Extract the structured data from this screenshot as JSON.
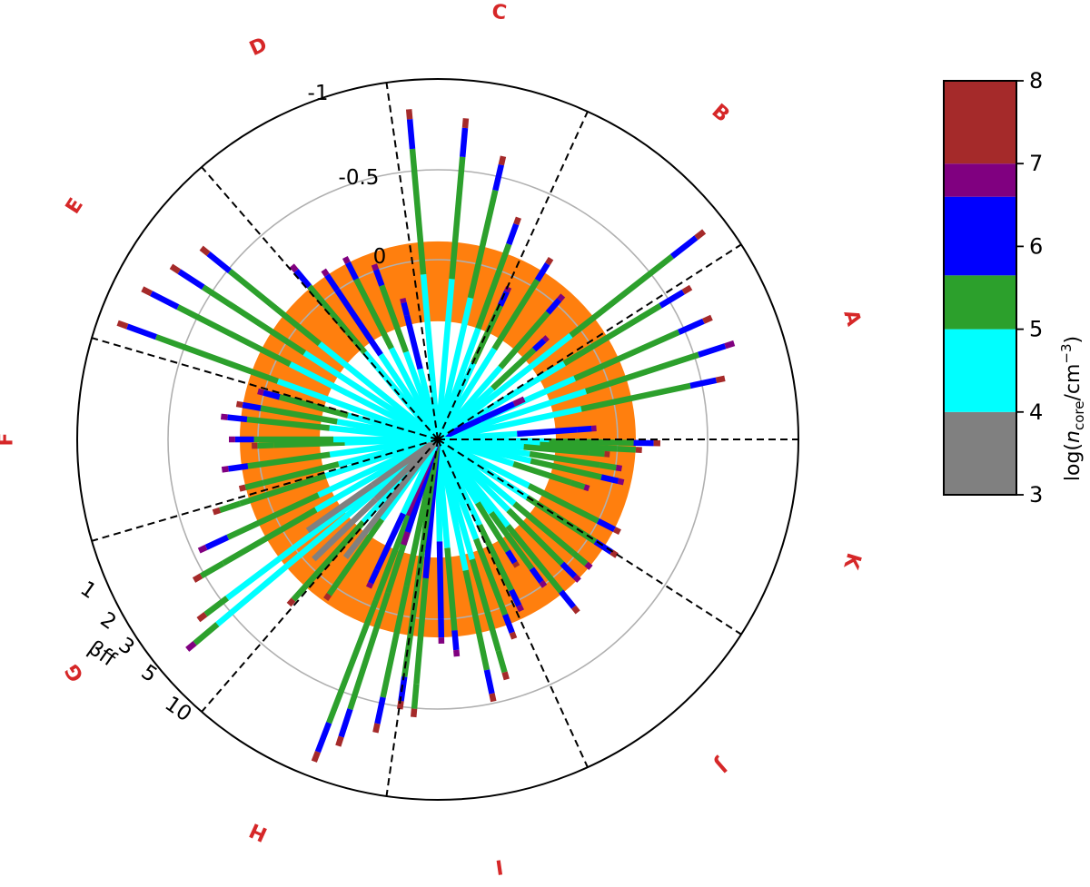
{
  "chart_data": {
    "type": "polar-bar",
    "sectors": [
      "A",
      "B",
      "C",
      "D",
      "E",
      "F",
      "G",
      "H",
      "I",
      "J",
      "K"
    ],
    "radial_ticks": [
      {
        "label": "-1",
        "value": -1
      },
      {
        "label": "-0.5",
        "value": -0.5
      },
      {
        "label": "0",
        "value": 0
      }
    ],
    "beta_ticks": [
      {
        "label": "1",
        "value": 1
      },
      {
        "label": "2",
        "value": 2
      },
      {
        "label": "3",
        "value": 3
      },
      {
        "label": "5",
        "value": 5
      },
      {
        "label": "10",
        "value": 10
      }
    ],
    "beta_axis_label": "βff",
    "orange_band": {
      "color": "#ff7f0e",
      "from": 0.45,
      "to": -0.15
    },
    "gridline_color": "#b0b0b0",
    "colorbar": {
      "label_prefix": "log(",
      "label_var": "n",
      "label_sub": "core",
      "label_unit": "/cm",
      "label_exp": "−3",
      "label_suffix": ")",
      "ticks": [
        "3",
        "4",
        "5",
        "6",
        "7",
        "8"
      ],
      "segments": [
        {
          "from": 3,
          "to": 4,
          "color": "#808080"
        },
        {
          "from": 4,
          "to": 5,
          "color": "#00ffff"
        },
        {
          "from": 5,
          "to": 5.65,
          "color": "#2ca02c"
        },
        {
          "from": 5.65,
          "to": 6.6,
          "color": "#0000ff"
        },
        {
          "from": 6.6,
          "to": 7,
          "color": "#800080"
        },
        {
          "from": 7,
          "to": 8,
          "color": "#a52a2a"
        }
      ]
    },
    "bars": [
      {
        "deg": 12,
        "len": 323,
        "c1": "#00ffff",
        "c2": "#2ca02c",
        "c3": "#0000ff",
        "tip": "#a52a2a"
      },
      {
        "deg": 18,
        "len": 343,
        "c1": "#00ffff",
        "c2": "#2ca02c",
        "c3": "#0000ff",
        "tip": "#800080"
      },
      {
        "deg": 24,
        "len": 330,
        "c1": "#00ffff",
        "c2": "#2ca02c",
        "c3": "#0000ff",
        "tip": "#a52a2a"
      },
      {
        "deg": 31,
        "len": 325,
        "c1": "#00ffff",
        "c2": "#2ca02c",
        "c3": "#0000ff",
        "tip": "#a52a2a"
      },
      {
        "deg": 38,
        "len": 372,
        "c1": "#00ffff",
        "c2": "#2ca02c",
        "c3": "#0000ff",
        "tip": "#a52a2a"
      },
      {
        "deg": 4,
        "len": 175,
        "c1": "#00ffff",
        "c2": "#0000ff",
        "c3": "#0000ff",
        "tip": "#800080"
      },
      {
        "deg": 25,
        "len": 105,
        "c1": "#0000ff",
        "c2": "#0000ff",
        "c3": "#800080",
        "tip": "#800080"
      },
      {
        "deg": -1,
        "len": 245,
        "c1": "#00ffff",
        "c2": "#2ca02c",
        "c3": "#0000ff",
        "tip": "#a52a2a"
      },
      {
        "deg": -3,
        "len": 225,
        "c1": "#00ffff",
        "c2": "#2ca02c",
        "c3": "#2ca02c",
        "tip": "#a52a2a"
      },
      {
        "deg": -5,
        "len": 190,
        "c1": "#00ffff",
        "c2": "#2ca02c",
        "c3": "#2ca02c",
        "tip": "#a52a2a"
      },
      {
        "deg": -9,
        "len": 205,
        "c1": "#00ffff",
        "c2": "#2ca02c",
        "c3": "#2ca02c",
        "tip": "#800080"
      },
      {
        "deg": -13,
        "len": 210,
        "c1": "#00ffff",
        "c2": "#2ca02c",
        "c3": "#0000ff",
        "tip": "#800080"
      },
      {
        "deg": -18,
        "len": 175,
        "c1": "#00ffff",
        "c2": "#2ca02c",
        "c3": "#2ca02c",
        "tip": "#800080"
      },
      {
        "deg": -27,
        "len": 225,
        "c1": "#00ffff",
        "c2": "#2ca02c",
        "c3": "#0000ff",
        "tip": "#a52a2a"
      },
      {
        "deg": -33,
        "len": 235,
        "c1": "#00ffff",
        "c2": "#2ca02c",
        "c3": "#0000ff",
        "tip": "#a52a2a"
      },
      {
        "deg": -40,
        "len": 220,
        "c1": "#00ffff",
        "c2": "#2ca02c",
        "c3": "#2ca02c",
        "tip": "#800080"
      },
      {
        "deg": -45,
        "len": 220,
        "c1": "#00ffff",
        "c2": "#2ca02c",
        "c3": "#0000ff",
        "tip": "#800080"
      },
      {
        "deg": -51,
        "len": 245,
        "c1": "#00ffff",
        "c2": "#2ca02c",
        "c3": "#0000ff",
        "tip": "#a52a2a"
      },
      {
        "deg": -54,
        "len": 200,
        "c1": "#00ffff",
        "c2": "#2ca02c",
        "c3": "#0000ff",
        "tip": "#800080"
      },
      {
        "deg": -58,
        "len": 165,
        "c1": "#00ffff",
        "c2": "#2ca02c",
        "c3": "#0000ff",
        "tip": "#a52a2a"
      },
      {
        "deg": -64,
        "len": 210,
        "c1": "#00ffff",
        "c2": "#2ca02c",
        "c3": "#0000ff",
        "tip": "#800080"
      },
      {
        "deg": -69,
        "len": 235,
        "c1": "#00ffff",
        "c2": "#2ca02c",
        "c3": "#0000ff",
        "tip": "#a52a2a"
      },
      {
        "deg": -74,
        "len": 275,
        "c1": "#00ffff",
        "c2": "#2ca02c",
        "c3": "#2ca02c",
        "tip": "#a52a2a"
      },
      {
        "deg": -78,
        "len": 295,
        "c1": "#00ffff",
        "c2": "#2ca02c",
        "c3": "#0000ff",
        "tip": "#a52a2a"
      },
      {
        "deg": -85,
        "len": 240,
        "c1": "#00ffff",
        "c2": "#2ca02c",
        "c3": "#0000ff",
        "tip": "#800080"
      },
      {
        "deg": -89,
        "len": 225,
        "c1": "#00ffff",
        "c2": "#0000ff",
        "c3": "#0000ff",
        "tip": "#800080"
      },
      {
        "deg": -95,
        "len": 307,
        "c1": "#0000ff",
        "c2": "#2ca02c",
        "c3": "#2ca02c",
        "tip": "#a52a2a"
      },
      {
        "deg": -98,
        "len": 300,
        "c1": "#2ca02c",
        "c3": "#0000ff",
        "c2": "#2ca02c",
        "tip": "#a52a2a"
      },
      {
        "deg": -102,
        "len": 330,
        "c1": "#2ca02c",
        "c2": "#2ca02c",
        "c3": "#0000ff",
        "tip": "#a52a2a"
      },
      {
        "deg": -108,
        "len": 355,
        "c1": "#2ca02c",
        "c2": "#2ca02c",
        "c3": "#0000ff",
        "tip": "#a52a2a"
      },
      {
        "deg": -111,
        "len": 380,
        "c1": "#2ca02c",
        "c2": "#2ca02c",
        "c3": "#0000ff",
        "tip": "#a52a2a"
      },
      {
        "deg": -108,
        "len": 122,
        "c1": "#0000ff",
        "c2": "#0000ff",
        "c3": "#800080",
        "tip": "#800080"
      },
      {
        "deg": -112,
        "len": 90,
        "c1": "#800080",
        "c2": "#800080",
        "c3": "#800080",
        "tip": "#800080"
      },
      {
        "deg": -115,
        "len": 180,
        "c1": "#00ffff",
        "c2": "#0000ff",
        "c3": "#0000ff",
        "tip": "#800080"
      },
      {
        "deg": -125,
        "len": 215,
        "c1": "#00ffff",
        "c2": "#2ca02c",
        "c3": "#2ca02c",
        "tip": "#a52a2a"
      },
      {
        "deg": -132,
        "len": 245,
        "c1": "#00ffff",
        "c2": "#2ca02c",
        "c3": "#2ca02c",
        "tip": "#a52a2a"
      },
      {
        "deg": -140,
        "len": 360,
        "c1": "#00ffff",
        "c2": "#00ffff",
        "c3": "#2ca02c",
        "tip": "#800080"
      },
      {
        "deg": -143,
        "len": 330,
        "c1": "#00ffff",
        "c2": "#00ffff",
        "c3": "#2ca02c",
        "tip": "#a52a2a"
      },
      {
        "deg": -150,
        "len": 310,
        "c1": "#00ffff",
        "c2": "#2ca02c",
        "c3": "#2ca02c",
        "tip": "#a52a2a"
      },
      {
        "deg": -155,
        "len": 290,
        "c1": "#00ffff",
        "c2": "#2ca02c",
        "c3": "#0000ff",
        "tip": "#800080"
      },
      {
        "deg": -162,
        "len": 260,
        "c1": "#00ffff",
        "c2": "#2ca02c",
        "c3": "#2ca02c",
        "tip": "#a52a2a"
      },
      {
        "deg": -166,
        "len": 225,
        "c1": "#00ffff",
        "c2": "#2ca02c",
        "c3": "#2ca02c",
        "tip": "#a52a2a"
      },
      {
        "deg": -172,
        "len": 240,
        "c1": "#00ffff",
        "c2": "#2ca02c",
        "c3": "#0000ff",
        "tip": "#800080"
      },
      {
        "deg": -178,
        "len": 205,
        "c1": "#00ffff",
        "c2": "#2ca02c",
        "c3": "#2ca02c",
        "tip": "#a52a2a"
      },
      {
        "deg": -145,
        "len": 175,
        "c1": "#808080",
        "c2": "#808080",
        "c3": "#808080",
        "tip": "#808080"
      },
      {
        "deg": -136,
        "len": 190,
        "c1": "#808080",
        "c2": "#808080",
        "c3": "#808080",
        "tip": "#808080"
      },
      {
        "deg": -128,
        "len": 165,
        "c1": "#808080",
        "c2": "#808080",
        "c3": "#808080",
        "tip": "#808080"
      },
      {
        "deg": 180,
        "len": 230,
        "c1": "#00ffff",
        "c2": "#2ca02c",
        "c3": "#0000ff",
        "tip": "#800080"
      },
      {
        "deg": 174,
        "len": 240,
        "c1": "#00ffff",
        "c2": "#2ca02c",
        "c3": "#0000ff",
        "tip": "#800080"
      },
      {
        "deg": 170,
        "len": 225,
        "c1": "#00ffff",
        "c2": "#2ca02c",
        "c3": "#0000ff",
        "tip": "#a52a2a"
      },
      {
        "deg": 165,
        "len": 205,
        "c1": "#00ffff",
        "c2": "#2ca02c",
        "c3": "#0000ff",
        "tip": "#800080"
      },
      {
        "deg": 160,
        "len": 375,
        "c1": "#00ffff",
        "c2": "#2ca02c",
        "c3": "#0000ff",
        "tip": "#a52a2a"
      },
      {
        "deg": 153,
        "len": 365,
        "c1": "#00ffff",
        "c2": "#2ca02c",
        "c3": "#0000ff",
        "tip": "#a52a2a"
      },
      {
        "deg": 147,
        "len": 350,
        "c1": "#00ffff",
        "c2": "#2ca02c",
        "c3": "#0000ff",
        "tip": "#a52a2a"
      },
      {
        "deg": 141,
        "len": 335,
        "c1": "#00ffff",
        "c2": "#2ca02c",
        "c3": "#0000ff",
        "tip": "#a52a2a"
      },
      {
        "deg": 130,
        "len": 250,
        "c1": "#00ffff",
        "c2": "#2ca02c",
        "c3": "#0000ff",
        "tip": "#800080"
      },
      {
        "deg": 124,
        "len": 225,
        "c1": "#00ffff",
        "c2": "#0000ff",
        "c3": "#0000ff",
        "tip": "#800080"
      },
      {
        "deg": 117,
        "len": 225,
        "c1": "#00ffff",
        "c2": "#2ca02c",
        "c3": "#0000ff",
        "tip": "#800080"
      },
      {
        "deg": 110,
        "len": 205,
        "c1": "#00ffff",
        "c2": "#2ca02c",
        "c3": "#0000ff",
        "tip": "#800080"
      },
      {
        "deg": 104,
        "len": 160,
        "c1": "#00ffff",
        "c2": "#0000ff",
        "c3": "#0000ff",
        "tip": "#800080"
      },
      {
        "deg": 95,
        "len": 365,
        "c1": "#00ffff",
        "c2": "#2ca02c",
        "c3": "#0000ff",
        "tip": "#a52a2a"
      },
      {
        "deg": 85,
        "len": 355,
        "c1": "#00ffff",
        "c2": "#2ca02c",
        "c3": "#0000ff",
        "tip": "#a52a2a"
      },
      {
        "deg": 77,
        "len": 320,
        "c1": "#00ffff",
        "c2": "#2ca02c",
        "c3": "#0000ff",
        "tip": "#a52a2a"
      },
      {
        "deg": 70,
        "len": 260,
        "c1": "#00ffff",
        "c2": "#2ca02c",
        "c3": "#0000ff",
        "tip": "#a52a2a"
      },
      {
        "deg": 65,
        "len": 185,
        "c1": "#00ffff",
        "c2": "#2ca02c",
        "c3": "#0000ff",
        "tip": "#800080"
      },
      {
        "deg": 58,
        "len": 235,
        "c1": "#00ffff",
        "c2": "#2ca02c",
        "c3": "#0000ff",
        "tip": "#a52a2a"
      },
      {
        "deg": 49,
        "len": 210,
        "c1": "#00ffff",
        "c2": "#2ca02c",
        "c3": "#0000ff",
        "tip": "#800080"
      },
      {
        "deg": 43,
        "len": 165,
        "c1": "#00ffff",
        "c2": "#2ca02c",
        "c3": "#0000ff",
        "tip": "#800080"
      }
    ]
  }
}
